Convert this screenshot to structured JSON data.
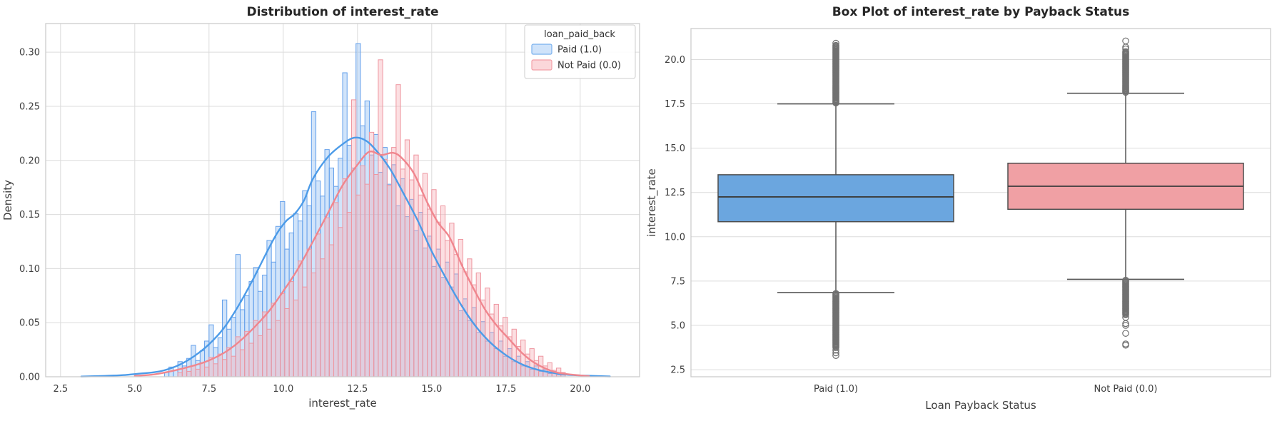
{
  "figure": {
    "background": "#ffffff"
  },
  "chart_data": [
    {
      "type": "histogram_kde",
      "title": "Distribution of interest_rate",
      "xlabel": "interest_rate",
      "ylabel": "Density",
      "xlim": [
        2.0,
        22.0
      ],
      "ylim": [
        0,
        0.3265
      ],
      "grid": "both",
      "x_ticks": {
        "values": [
          2.5,
          5.0,
          7.5,
          10.0,
          12.5,
          15.0,
          17.5,
          20.0
        ],
        "labels": [
          "2.5",
          "5.0",
          "7.5",
          "10.0",
          "12.5",
          "15.0",
          "17.5",
          "20.0"
        ]
      },
      "y_ticks": {
        "values": [
          0.0,
          0.05,
          0.1,
          0.15,
          0.2,
          0.25,
          0.3
        ],
        "labels": [
          "0.00",
          "0.05",
          "0.10",
          "0.15",
          "0.20",
          "0.25",
          "0.30"
        ]
      },
      "legend": {
        "title": "loan_paid_back",
        "position": "upper right",
        "items": [
          {
            "label": "Paid (1.0)",
            "swatch_fill": "#cfe3fa",
            "swatch_stroke": "#78b0ee"
          },
          {
            "label": "Not Paid (0.0)",
            "swatch_fill": "#fbd7da",
            "swatch_stroke": "#f2a0a8"
          }
        ]
      },
      "series": [
        {
          "name": "Paid (1.0)",
          "edge_color": "#64a0eb",
          "fill_color": "#85b7f2",
          "fill_opacity": 0.38,
          "kde_color": "#4c9be8",
          "bins": {
            "start": 6.0,
            "width": 0.15,
            "heights": [
              0.004,
              0.009,
              0.006,
              0.014,
              0.01,
              0.017,
              0.029,
              0.015,
              0.024,
              0.033,
              0.048,
              0.027,
              0.036,
              0.071,
              0.044,
              0.055,
              0.113,
              0.062,
              0.075,
              0.088,
              0.101,
              0.079,
              0.094,
              0.126,
              0.106,
              0.139,
              0.162,
              0.118,
              0.133,
              0.151,
              0.144,
              0.172,
              0.158,
              0.245,
              0.181,
              0.167,
              0.21,
              0.193,
              0.176,
              0.202,
              0.281,
              0.214,
              0.193,
              0.308,
              0.232,
              0.255,
              0.205,
              0.224,
              0.189,
              0.212,
              0.178,
              0.196,
              0.158,
              0.183,
              0.148,
              0.164,
              0.135,
              0.152,
              0.119,
              0.13,
              0.102,
              0.118,
              0.092,
              0.106,
              0.083,
              0.095,
              0.061,
              0.072,
              0.052,
              0.064,
              0.041,
              0.051,
              0.033,
              0.041,
              0.026,
              0.033,
              0.019,
              0.026,
              0.014,
              0.019,
              0.01,
              0.014,
              0.007,
              0.01,
              0.005,
              0.007,
              0.003,
              0.005,
              0.002,
              0.003
            ]
          },
          "kde": [
            [
              3.2,
              0.0002
            ],
            [
              4.0,
              0.0008
            ],
            [
              4.6,
              0.0015
            ],
            [
              5.2,
              0.003
            ],
            [
              5.6,
              0.004
            ],
            [
              6.0,
              0.006
            ],
            [
              6.5,
              0.011
            ],
            [
              7.0,
              0.019
            ],
            [
              7.5,
              0.03
            ],
            [
              8.0,
              0.045
            ],
            [
              8.5,
              0.066
            ],
            [
              9.0,
              0.091
            ],
            [
              9.5,
              0.118
            ],
            [
              9.8,
              0.133
            ],
            [
              10.1,
              0.144
            ],
            [
              10.4,
              0.151
            ],
            [
              10.7,
              0.163
            ],
            [
              11.0,
              0.183
            ],
            [
              11.5,
              0.203
            ],
            [
              12.0,
              0.215
            ],
            [
              12.4,
              0.221
            ],
            [
              12.8,
              0.218
            ],
            [
              13.2,
              0.207
            ],
            [
              13.6,
              0.192
            ],
            [
              14.0,
              0.172
            ],
            [
              14.5,
              0.146
            ],
            [
              15.0,
              0.116
            ],
            [
              15.5,
              0.09
            ],
            [
              16.0,
              0.066
            ],
            [
              16.5,
              0.046
            ],
            [
              17.0,
              0.031
            ],
            [
              17.5,
              0.02
            ],
            [
              18.0,
              0.012
            ],
            [
              18.5,
              0.007
            ],
            [
              19.0,
              0.004
            ],
            [
              19.5,
              0.002
            ],
            [
              20.2,
              0.001
            ],
            [
              21.0,
              0.0003
            ]
          ]
        },
        {
          "name": "Not Paid (0.0)",
          "edge_color": "#ee96a0",
          "fill_color": "#f6aab2",
          "fill_opacity": 0.38,
          "kde_color": "#f0868e",
          "bins": {
            "start": 6.45,
            "width": 0.15,
            "heights": [
              0.004,
              0.008,
              0.005,
              0.01,
              0.007,
              0.013,
              0.009,
              0.018,
              0.012,
              0.021,
              0.016,
              0.027,
              0.019,
              0.037,
              0.025,
              0.042,
              0.031,
              0.052,
              0.038,
              0.06,
              0.044,
              0.068,
              0.052,
              0.077,
              0.063,
              0.088,
              0.071,
              0.107,
              0.083,
              0.118,
              0.096,
              0.132,
              0.109,
              0.147,
              0.122,
              0.161,
              0.138,
              0.183,
              0.152,
              0.256,
              0.168,
              0.195,
              0.178,
              0.226,
              0.187,
              0.293,
              0.201,
              0.177,
              0.212,
              0.27,
              0.192,
              0.219,
              0.182,
              0.205,
              0.168,
              0.188,
              0.155,
              0.173,
              0.143,
              0.158,
              0.126,
              0.142,
              0.113,
              0.127,
              0.097,
              0.109,
              0.085,
              0.096,
              0.071,
              0.082,
              0.058,
              0.067,
              0.047,
              0.055,
              0.037,
              0.044,
              0.028,
              0.034,
              0.021,
              0.026,
              0.015,
              0.019,
              0.01,
              0.013,
              0.006,
              0.008,
              0.004
            ]
          },
          "kde": [
            [
              5.0,
              0.0008
            ],
            [
              5.6,
              0.002
            ],
            [
              6.2,
              0.005
            ],
            [
              6.8,
              0.009
            ],
            [
              7.4,
              0.014
            ],
            [
              8.0,
              0.022
            ],
            [
              8.5,
              0.032
            ],
            [
              9.0,
              0.045
            ],
            [
              9.5,
              0.06
            ],
            [
              10.0,
              0.079
            ],
            [
              10.5,
              0.1
            ],
            [
              11.0,
              0.125
            ],
            [
              11.5,
              0.151
            ],
            [
              12.0,
              0.177
            ],
            [
              12.5,
              0.196
            ],
            [
              12.9,
              0.208
            ],
            [
              13.3,
              0.205
            ],
            [
              13.7,
              0.207
            ],
            [
              14.0,
              0.202
            ],
            [
              14.4,
              0.188
            ],
            [
              14.8,
              0.164
            ],
            [
              15.2,
              0.143
            ],
            [
              15.6,
              0.129
            ],
            [
              16.0,
              0.104
            ],
            [
              16.4,
              0.082
            ],
            [
              16.8,
              0.062
            ],
            [
              17.2,
              0.047
            ],
            [
              17.6,
              0.035
            ],
            [
              18.0,
              0.023
            ],
            [
              18.4,
              0.014
            ],
            [
              18.8,
              0.008
            ],
            [
              19.2,
              0.004
            ],
            [
              19.7,
              0.002
            ],
            [
              20.3,
              0.0005
            ]
          ]
        }
      ]
    },
    {
      "type": "box",
      "title": "Box Plot of interest_rate by Payback Status",
      "xlabel": "Loan Payback Status",
      "ylabel": "interest_rate",
      "ylim": [
        2.1,
        21.75
      ],
      "grid": "horizontal",
      "y_ticks": {
        "values": [
          2.5,
          5.0,
          7.5,
          10.0,
          12.5,
          15.0,
          17.5,
          20.0
        ],
        "labels": [
          "2.5",
          "5.0",
          "7.5",
          "10.0",
          "12.5",
          "15.0",
          "17.5",
          "20.0"
        ]
      },
      "categories": [
        "Paid (1.0)",
        "Not Paid (0.0)"
      ],
      "style": {
        "box_edge": "#4d4d4d",
        "median_color": "#3c3c3c",
        "whisker_color": "#555555",
        "flier_color": "#707070"
      },
      "boxes": [
        {
          "category": "Paid (1.0)",
          "fill": "#6ba6df",
          "stats": {
            "q1": 10.85,
            "median": 12.25,
            "q3": 13.5,
            "whisker_low": 6.85,
            "whisker_high": 17.5
          },
          "outliers_high": {
            "from": 17.55,
            "to": 20.8,
            "step": 0.05,
            "extra": [
              20.92
            ]
          },
          "outliers_low": {
            "from": 3.75,
            "to": 6.8,
            "step": 0.05,
            "extra": [
              3.6,
              3.45,
              3.3
            ]
          }
        },
        {
          "category": "Not Paid (0.0)",
          "fill": "#f0a0a4",
          "stats": {
            "q1": 11.55,
            "median": 12.85,
            "q3": 14.15,
            "whisker_low": 7.6,
            "whisker_high": 18.1
          },
          "outliers_high": {
            "from": 18.15,
            "to": 20.45,
            "step": 0.05,
            "extra": [
              20.6,
              20.7,
              21.05
            ]
          },
          "outliers_low": {
            "from": 5.6,
            "to": 7.55,
            "step": 0.05,
            "extra": [
              5.45,
              5.1,
              5.0,
              4.55,
              3.95,
              3.88
            ]
          }
        }
      ]
    }
  ]
}
